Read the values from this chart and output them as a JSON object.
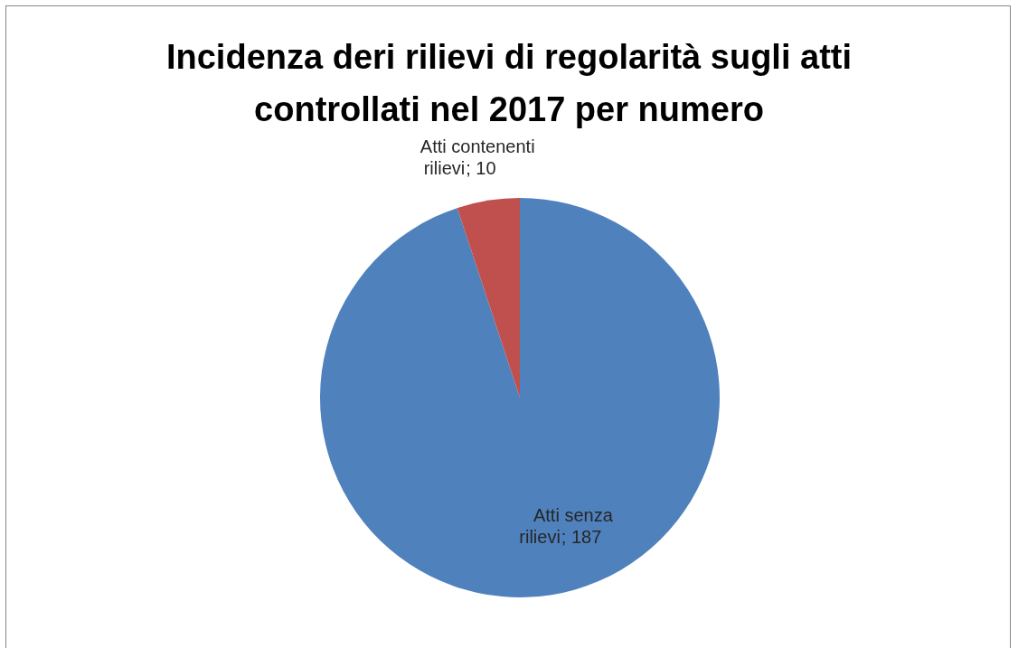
{
  "chart_data": {
    "type": "pie",
    "title": "Incidenza deri rilievi di regolarità sugli atti controllati nel 2017 per numero",
    "categories": [
      "Atti senza rilievi",
      "Atti contenenti rilievi"
    ],
    "values": [
      187,
      10
    ],
    "colors": [
      "#4f81bd",
      "#c0504d"
    ],
    "value_labels": [
      "; 187",
      "; 10"
    ],
    "legend": false
  }
}
